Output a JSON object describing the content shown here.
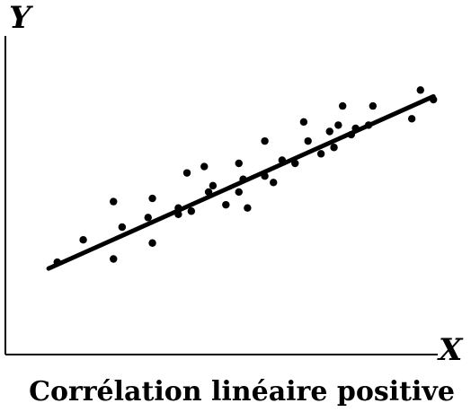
{
  "chart_data": {
    "type": "scatter",
    "title": "Corrélation linéaire positive",
    "xlabel": "X",
    "ylabel": "Y",
    "xlim": [
      0,
      10
    ],
    "ylim": [
      0,
      10
    ],
    "grid": false,
    "legend": "none",
    "trend_line": {
      "x": [
        1.0,
        9.9
      ],
      "y": [
        2.7,
        8.1
      ]
    },
    "x": [
      1.2,
      1.8,
      2.5,
      2.5,
      2.7,
      3.3,
      3.4,
      3.4,
      4.0,
      4.0,
      4.2,
      4.3,
      4.6,
      4.7,
      4.8,
      5.1,
      5.4,
      5.4,
      5.5,
      5.6,
      6.0,
      6.0,
      6.2,
      6.4,
      6.7,
      6.9,
      7.0,
      7.3,
      7.5,
      7.6,
      7.7,
      7.8,
      8.0,
      8.1,
      8.4,
      8.5,
      9.4,
      9.6,
      9.9
    ],
    "y": [
      2.9,
      3.6,
      3.0,
      4.8,
      4.0,
      4.3,
      3.5,
      4.9,
      4.4,
      4.6,
      5.7,
      4.5,
      5.9,
      5.1,
      5.3,
      4.7,
      5.1,
      6.0,
      5.5,
      4.6,
      5.6,
      6.7,
      5.4,
      6.1,
      6.0,
      7.3,
      6.7,
      6.3,
      7.0,
      6.5,
      7.2,
      7.8,
      6.9,
      7.1,
      7.2,
      7.8,
      7.4,
      8.3,
      8.0
    ]
  }
}
